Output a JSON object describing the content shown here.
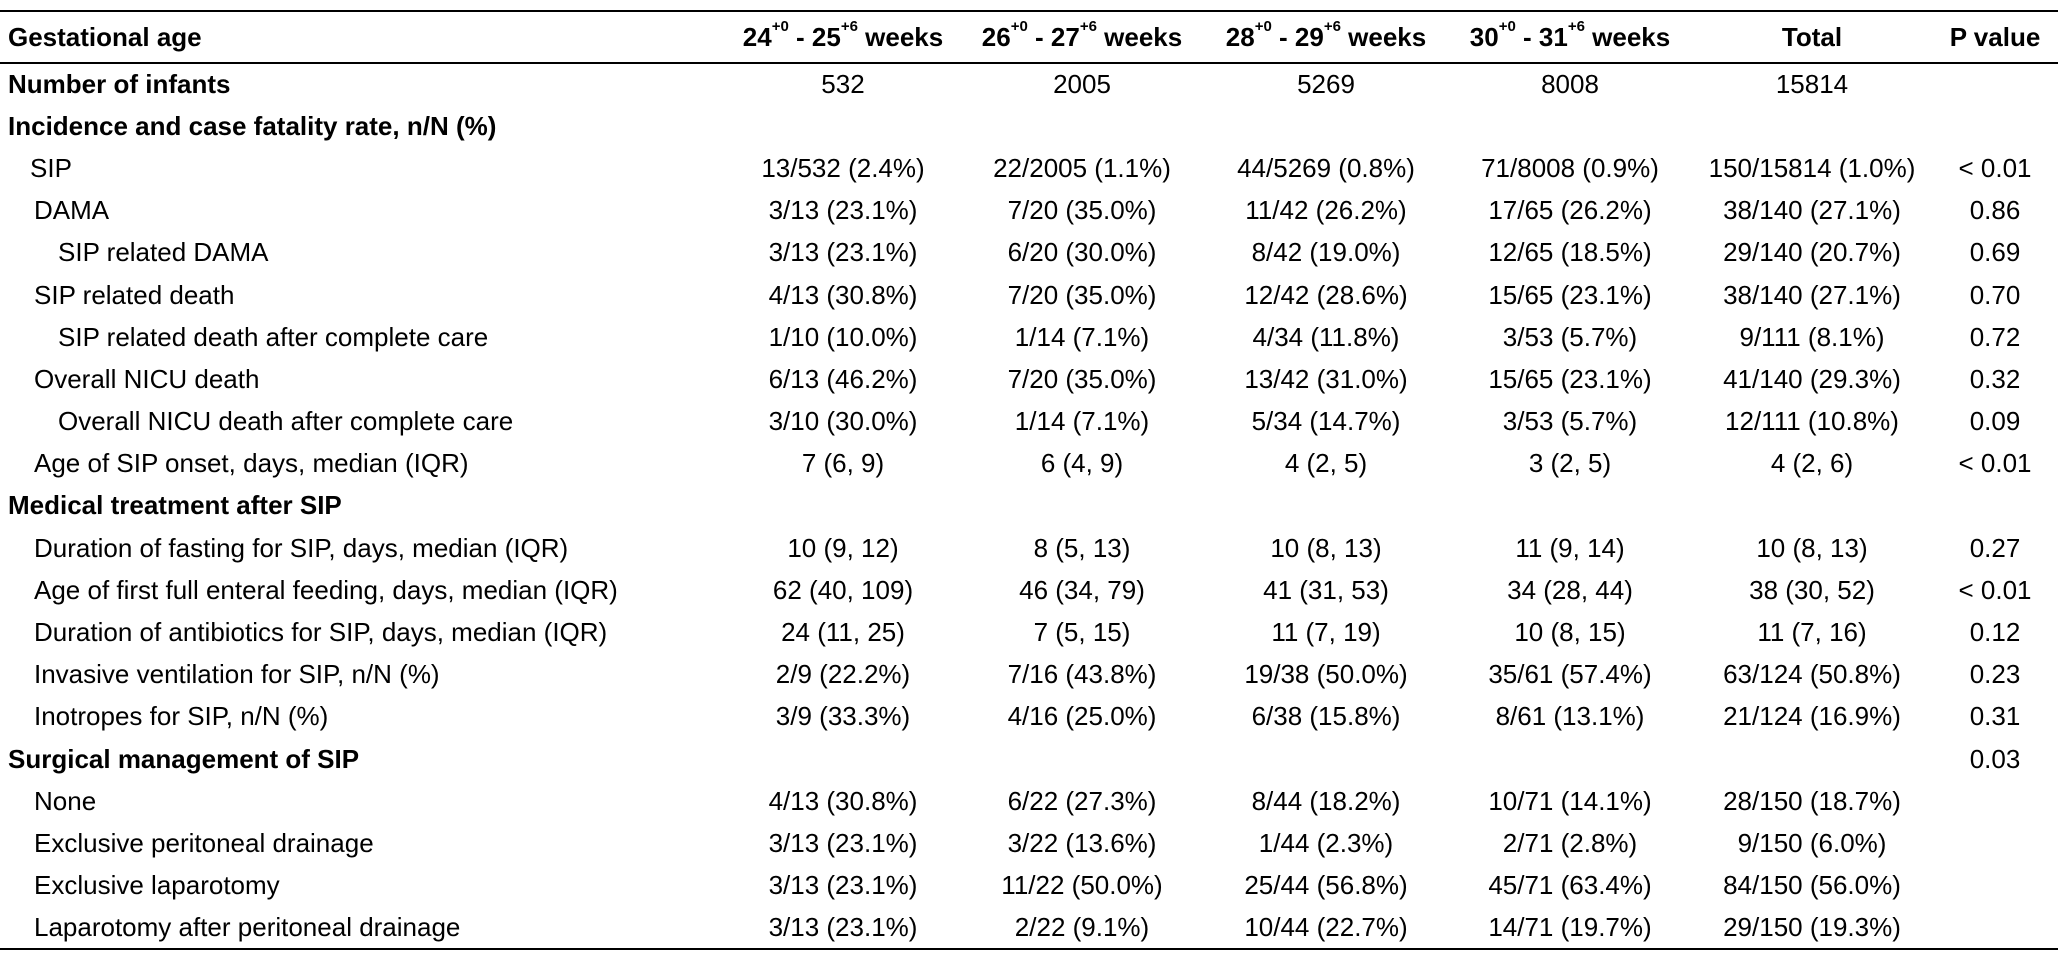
{
  "header": {
    "label": "Gestational age",
    "columns": [
      {
        "base": "24",
        "sup1": "+0",
        "mid": " - 25",
        "sup2": "+6",
        "tail": " weeks"
      },
      {
        "base": "26",
        "sup1": "+0",
        "mid": " - 27",
        "sup2": "+6",
        "tail": " weeks"
      },
      {
        "base": "28",
        "sup1": "+0",
        "mid": " - 29",
        "sup2": "+6",
        "tail": " weeks"
      },
      {
        "base": "30",
        "sup1": "+0",
        "mid": " - 31",
        "sup2": "+6",
        "tail": " weeks"
      }
    ],
    "total": "Total",
    "pvalue": "P value"
  },
  "rows": [
    {
      "label": "Number of infants",
      "style": "bold",
      "cells": [
        "532",
        "2005",
        "5269",
        "8008",
        "15814"
      ],
      "p": ""
    },
    {
      "label": "Incidence and case fatality rate, n/N (%)",
      "style": "bold",
      "cells": [
        "",
        "",
        "",
        "",
        ""
      ],
      "p": ""
    },
    {
      "label": "SIP",
      "style": "i1",
      "cells": [
        "13/532 (2.4%)",
        "22/2005 (1.1%)",
        "44/5269 (0.8%)",
        "71/8008 (0.9%)",
        "150/15814 (1.0%)"
      ],
      "p": "< 0.01"
    },
    {
      "label": "DAMA",
      "style": "i1b",
      "cells": [
        "3/13 (23.1%)",
        "7/20 (35.0%)",
        "11/42 (26.2%)",
        "17/65 (26.2%)",
        "38/140 (27.1%)"
      ],
      "p": "0.86"
    },
    {
      "label": "SIP related DAMA",
      "style": "i2",
      "cells": [
        "3/13 (23.1%)",
        "6/20 (30.0%)",
        "8/42 (19.0%)",
        "12/65 (18.5%)",
        "29/140 (20.7%)"
      ],
      "p": "0.69"
    },
    {
      "label": "SIP related death",
      "style": "i1b",
      "cells": [
        "4/13 (30.8%)",
        "7/20 (35.0%)",
        "12/42 (28.6%)",
        "15/65 (23.1%)",
        "38/140 (27.1%)"
      ],
      "p": "0.70"
    },
    {
      "label": "SIP related death after complete care",
      "style": "i2",
      "cells": [
        "1/10 (10.0%)",
        "1/14 (7.1%)",
        "4/34 (11.8%)",
        "3/53 (5.7%)",
        "9/111 (8.1%)"
      ],
      "p": "0.72"
    },
    {
      "label": "Overall NICU death",
      "style": "i1b",
      "cells": [
        "6/13 (46.2%)",
        "7/20 (35.0%)",
        "13/42 (31.0%)",
        "15/65 (23.1%)",
        "41/140 (29.3%)"
      ],
      "p": "0.32"
    },
    {
      "label": "Overall NICU death after complete care",
      "style": "i2",
      "cells": [
        "3/10 (30.0%)",
        "1/14 (7.1%)",
        "5/34 (14.7%)",
        "3/53 (5.7%)",
        "12/111 (10.8%)"
      ],
      "p": "0.09"
    },
    {
      "label": "Age of SIP onset, days, median (IQR)",
      "style": "i1b",
      "cells": [
        "7 (6, 9)",
        "6 (4, 9)",
        "4 (2, 5)",
        "3 (2, 5)",
        "4 (2, 6)"
      ],
      "p": "< 0.01"
    },
    {
      "label": "Medical treatment after SIP",
      "style": "bold",
      "cells": [
        "",
        "",
        "",
        "",
        ""
      ],
      "p": ""
    },
    {
      "label": "Duration of fasting for SIP, days, median (IQR)",
      "style": "i1b",
      "cells": [
        "10 (9, 12)",
        "8 (5, 13)",
        "10 (8, 13)",
        "11 (9, 14)",
        "10 (8, 13)"
      ],
      "p": "0.27"
    },
    {
      "label": "Age of first full enteral feeding, days, median (IQR)",
      "style": "i1b",
      "cells": [
        "62 (40, 109)",
        "46 (34, 79)",
        "41 (31, 53)",
        "34 (28, 44)",
        "38 (30, 52)"
      ],
      "p": "< 0.01"
    },
    {
      "label": "Duration of antibiotics for SIP, days, median (IQR)",
      "style": "i1b",
      "cells": [
        "24 (11, 25)",
        "7 (5, 15)",
        "11 (7, 19)",
        "10 (8, 15)",
        "11 (7, 16)"
      ],
      "p": "0.12"
    },
    {
      "label": "Invasive ventilation for SIP, n/N (%)",
      "style": "i1b",
      "cells": [
        "2/9 (22.2%)",
        "7/16 (43.8%)",
        "19/38 (50.0%)",
        "35/61 (57.4%)",
        "63/124 (50.8%)"
      ],
      "p": "0.23"
    },
    {
      "label": "Inotropes for SIP, n/N (%)",
      "style": "i1b",
      "cells": [
        "3/9 (33.3%)",
        "4/16 (25.0%)",
        "6/38 (15.8%)",
        "8/61 (13.1%)",
        "21/124 (16.9%)"
      ],
      "p": "0.31"
    },
    {
      "label": "Surgical management of SIP",
      "style": "bold",
      "cells": [
        "",
        "",
        "",
        "",
        ""
      ],
      "p": "0.03"
    },
    {
      "label": "None",
      "style": "i1b",
      "cells": [
        "4/13 (30.8%)",
        "6/22 (27.3%)",
        "8/44 (18.2%)",
        "10/71 (14.1%)",
        "28/150 (18.7%)"
      ],
      "p": ""
    },
    {
      "label": "Exclusive peritoneal drainage",
      "style": "i1b",
      "cells": [
        "3/13 (23.1%)",
        "3/22 (13.6%)",
        "1/44 (2.3%)",
        "2/71 (2.8%)",
        "9/150 (6.0%)"
      ],
      "p": ""
    },
    {
      "label": "Exclusive laparotomy",
      "style": "i1b",
      "cells": [
        "3/13 (23.1%)",
        "11/22 (50.0%)",
        "25/44 (56.8%)",
        "45/71 (63.4%)",
        "84/150 (56.0%)"
      ],
      "p": ""
    },
    {
      "label": "Laparotomy after peritoneal drainage",
      "style": "i1b",
      "cells": [
        "3/13 (23.1%)",
        "2/22 (9.1%)",
        "10/44 (22.7%)",
        "14/71 (19.7%)",
        "29/150 (19.3%)"
      ],
      "p": ""
    }
  ]
}
